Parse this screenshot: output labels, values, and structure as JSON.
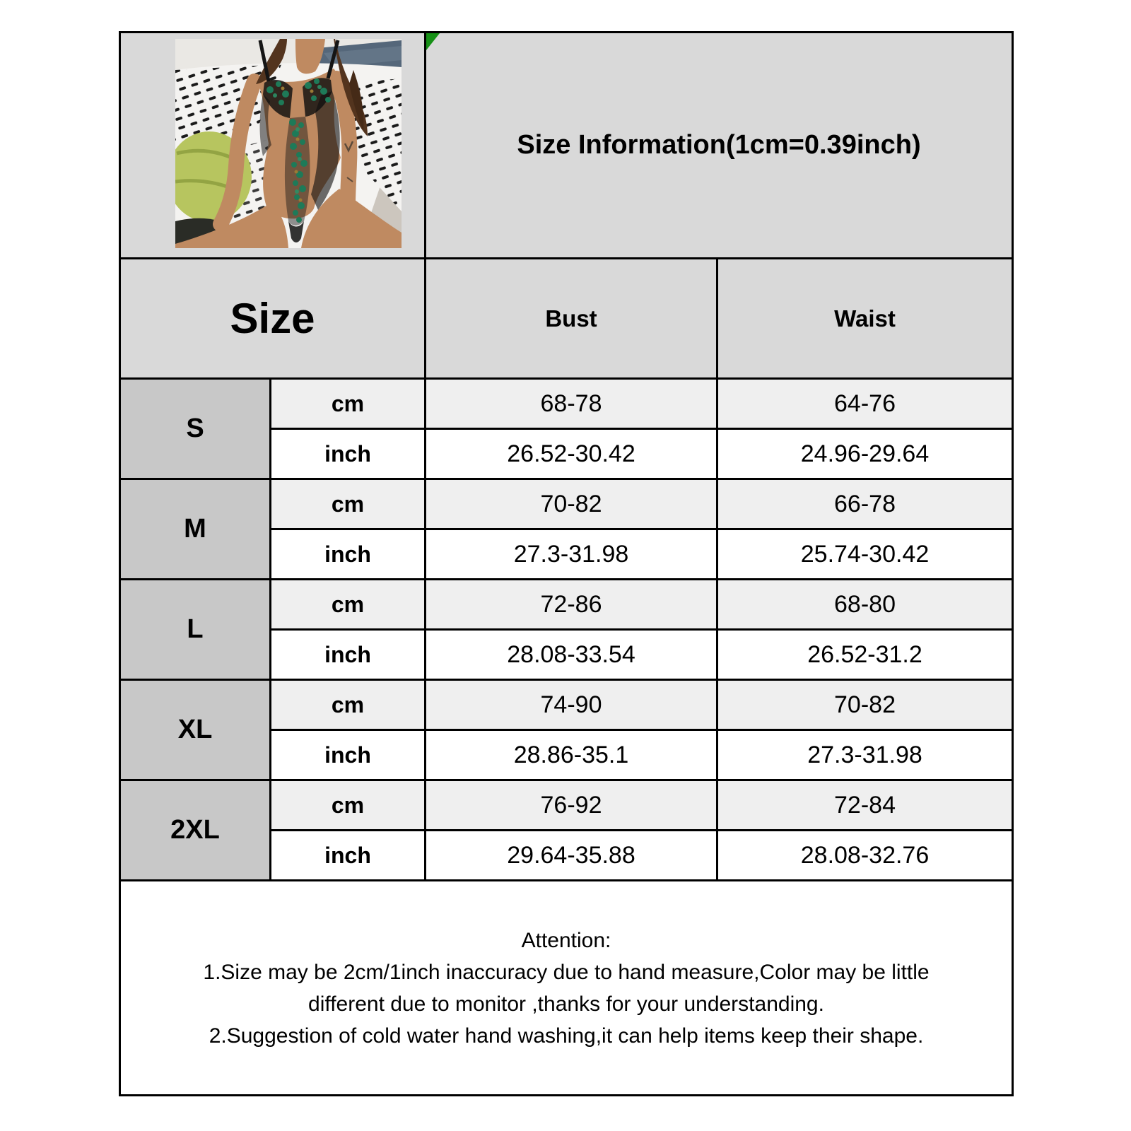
{
  "title": "Size Information(1cm=0.39inch)",
  "table": {
    "header": {
      "size": "Size",
      "bust": "Bust",
      "waist": "Waist"
    },
    "units": {
      "cm": "cm",
      "inch": "inch"
    },
    "sizes": [
      {
        "label": "S",
        "cm": {
          "bust": "68-78",
          "waist": "64-76"
        },
        "inch": {
          "bust": "26.52-30.42",
          "waist": "24.96-29.64"
        }
      },
      {
        "label": "M",
        "cm": {
          "bust": "70-82",
          "waist": "66-78"
        },
        "inch": {
          "bust": "27.3-31.98",
          "waist": "25.74-30.42"
        }
      },
      {
        "label": "L",
        "cm": {
          "bust": "72-86",
          "waist": "68-80"
        },
        "inch": {
          "bust": "28.08-33.54",
          "waist": "26.52-31.2"
        }
      },
      {
        "label": "XL",
        "cm": {
          "bust": "74-90",
          "waist": "70-82"
        },
        "inch": {
          "bust": "28.86-35.1",
          "waist": "27.3-31.98"
        }
      },
      {
        "label": "2XL",
        "cm": {
          "bust": "76-92",
          "waist": "72-84"
        },
        "inch": {
          "bust": "29.64-35.88",
          "waist": "28.08-32.76"
        }
      }
    ]
  },
  "attention": {
    "lines": [
      "Attention:",
      "1.Size may be 2cm/1inch inaccuracy due to hand measure,Color may be little",
      "different due to monitor ,thanks for your understanding.",
      "2.Suggestion of cold water hand washing,it can help items keep their shape."
    ]
  },
  "product_image": {
    "description": "Model wearing a black sheer lace bodysuit with green floral embroidery, sitting on black-and-white patterned bedding with a green pillow"
  },
  "colors": {
    "header_bg": "#d9d9d9",
    "size_label_bg": "#c8c8c8",
    "cm_row_bg": "#efefef",
    "border": "#000000",
    "corner_marker_green": "#169016",
    "embroidery_green": "#1e7a58"
  }
}
